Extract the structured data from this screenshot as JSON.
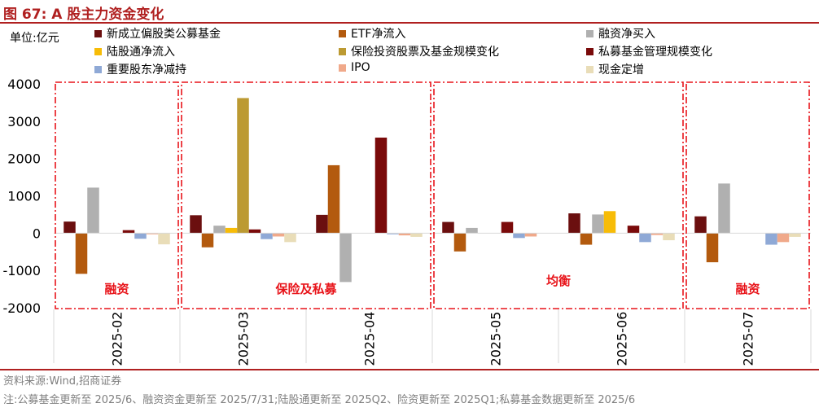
{
  "header": {
    "title": "图 67:  A 股主力资金变化"
  },
  "footer": {
    "source": "资料来源:Wind,招商证券",
    "note": "注:公募基金更新至 2025/6、融资资金更新至 2025/7/31;陆股通更新至 2025Q2、险资更新至 2025Q1;私募基金数据更新至 2025/6"
  },
  "chart_data": {
    "type": "bar",
    "unit_label": "单位:亿元",
    "ylim": [
      -2000,
      4000
    ],
    "yticks": [
      4000,
      3000,
      2000,
      1000,
      0,
      -1000,
      -2000
    ],
    "categories": [
      "2025-02",
      "2025-03",
      "2025-04",
      "2025-05",
      "2025-06",
      "2025-07"
    ],
    "series": [
      {
        "name": "新成立偏股类公募基金",
        "color": "#6B0F0F",
        "values": [
          310,
          480,
          490,
          300,
          530,
          450
        ]
      },
      {
        "name": "ETF净流入",
        "color": "#B35A0E",
        "values": [
          -1090,
          -380,
          1820,
          -490,
          -310,
          -780
        ]
      },
      {
        "name": "融资净买入",
        "color": "#B0B0B0",
        "values": [
          1220,
          200,
          -1310,
          140,
          500,
          1330
        ]
      },
      {
        "name": "陆股通净流入",
        "color": "#F7BC07",
        "values": [
          null,
          140,
          null,
          null,
          590,
          null
        ]
      },
      {
        "name": "保险投资股票及基金规模变化",
        "color": "#BC9A32",
        "values": [
          null,
          3620,
          null,
          null,
          null,
          null
        ]
      },
      {
        "name": "私募基金管理规模变化",
        "color": "#7A0A0A",
        "values": [
          80,
          100,
          2560,
          300,
          200,
          null
        ]
      },
      {
        "name": "重要股东净减持",
        "color": "#8FA9D6",
        "values": [
          -150,
          -160,
          -30,
          -130,
          -240,
          -310
        ]
      },
      {
        "name": "IPO",
        "color": "#F0A98A",
        "values": [
          -30,
          -90,
          -60,
          -90,
          -50,
          -240
        ]
      },
      {
        "name": "现金定增",
        "color": "#E9DDB8",
        "values": [
          -300,
          -240,
          -100,
          null,
          -190,
          -100
        ]
      }
    ],
    "groups": [
      {
        "label": "融资",
        "from": 0,
        "to": 0
      },
      {
        "label": "保险及私募",
        "from": 1,
        "to": 2
      },
      {
        "label": "均衡",
        "from": 3,
        "to": 4
      },
      {
        "label": "融资",
        "from": 5,
        "to": 5
      }
    ]
  }
}
